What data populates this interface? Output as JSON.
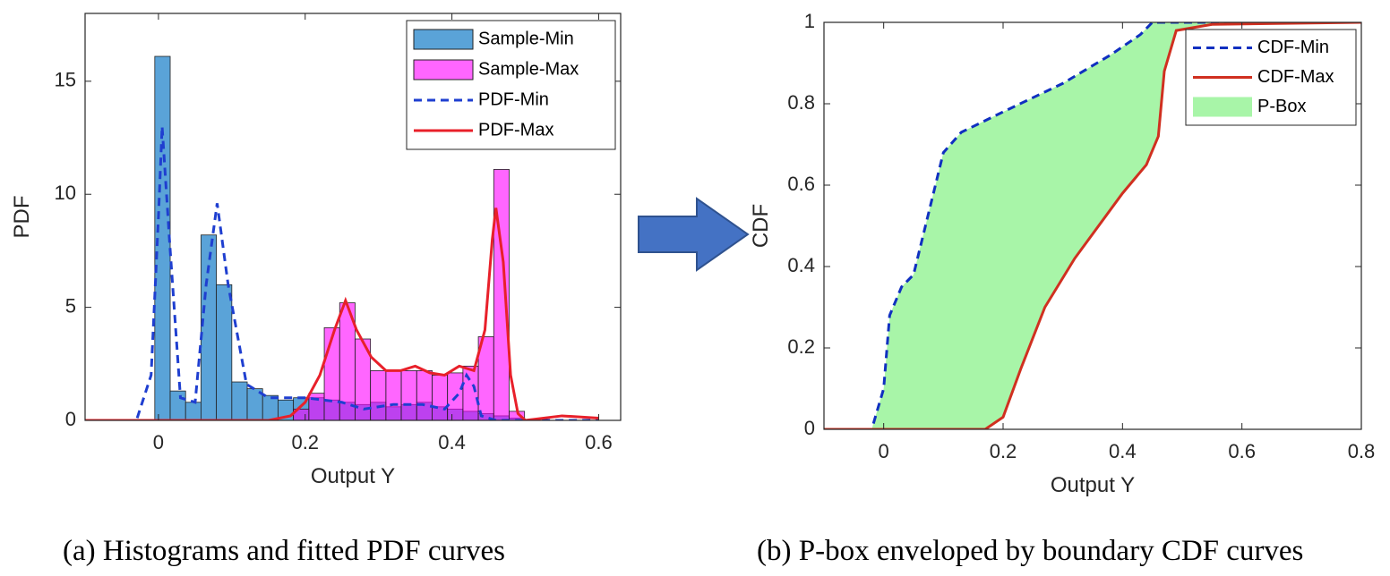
{
  "chart_data": [
    {
      "type": "histogram",
      "caption": "(a) Histograms and fitted PDF curves",
      "xlabel": "Output Y",
      "ylabel": "PDF",
      "xlim": [
        -0.1,
        0.63
      ],
      "ylim": [
        0,
        18
      ],
      "xticks": [
        0,
        0.2,
        0.4,
        0.6
      ],
      "yticks": [
        0,
        5,
        10,
        15
      ],
      "legend": "upper right",
      "bins": [
        -0.005,
        0.016,
        0.037,
        0.058,
        0.079,
        0.1,
        0.121,
        0.142,
        0.163,
        0.184,
        0.205,
        0.226,
        0.247,
        0.268,
        0.289,
        0.31,
        0.331,
        0.352,
        0.373,
        0.394,
        0.415,
        0.436,
        0.457,
        0.478,
        0.499
      ],
      "series": [
        {
          "name": "Sample-Min",
          "color": "#5aa3d8",
          "alpha": 1,
          "values": [
            16.1,
            1.3,
            0.8,
            8.2,
            6.0,
            1.7,
            1.4,
            1.1,
            0.9,
            1.0,
            1.0,
            0.9,
            0.8,
            0.7,
            0.8,
            0.6,
            0.7,
            0.8,
            0.6,
            0.5,
            0.4,
            0.3,
            0.2,
            0.1
          ]
        },
        {
          "name": "Sample-Max",
          "color": "#ff00ff",
          "alpha": 0.6,
          "values": [
            0,
            0,
            0,
            0,
            0,
            0,
            0,
            0,
            0,
            0.5,
            1.2,
            4.1,
            5.2,
            3.6,
            2.2,
            2.2,
            2.2,
            2.2,
            2.0,
            2.1,
            2.4,
            3.7,
            11.1,
            0.4
          ]
        }
      ],
      "lines": [
        {
          "name": "PDF-Min",
          "color": "#1f3fd0",
          "line_style": "dashed",
          "x": [
            -0.1,
            -0.03,
            -0.01,
            0,
            0.005,
            0.015,
            0.03,
            0.05,
            0.065,
            0.08,
            0.095,
            0.12,
            0.15,
            0.2,
            0.25,
            0.28,
            0.32,
            0.36,
            0.39,
            0.41,
            0.42,
            0.43,
            0.44,
            0.46,
            0.6
          ],
          "values": [
            0,
            0,
            2,
            9,
            13,
            8,
            1,
            0.8,
            6,
            9.6,
            6,
            1.6,
            1.0,
            1.0,
            0.8,
            0.5,
            0.7,
            0.7,
            0.5,
            1.2,
            2.0,
            1.5,
            0.2,
            0,
            0
          ]
        },
        {
          "name": "PDF-Max",
          "color": "#e8202a",
          "line_style": "solid",
          "x": [
            -0.1,
            0.15,
            0.18,
            0.2,
            0.22,
            0.24,
            0.255,
            0.27,
            0.29,
            0.31,
            0.33,
            0.35,
            0.37,
            0.39,
            0.41,
            0.43,
            0.445,
            0.455,
            0.46,
            0.47,
            0.48,
            0.49,
            0.5,
            0.55,
            0.6
          ],
          "values": [
            0,
            0,
            0.2,
            0.8,
            2,
            4,
            5.3,
            4,
            2.8,
            2.2,
            2.2,
            2.4,
            2.1,
            2.0,
            2.4,
            2.2,
            4,
            8,
            9.4,
            7,
            2,
            0.3,
            0,
            0.2,
            0.1
          ]
        }
      ]
    },
    {
      "type": "line",
      "caption": "(b) P-box enveloped by boundary CDF curves",
      "xlabel": "Output Y",
      "ylabel": "CDF",
      "xlim": [
        -0.1,
        0.8
      ],
      "ylim": [
        0,
        1
      ],
      "xticks": [
        0,
        0.2,
        0.4,
        0.6,
        0.8
      ],
      "yticks": [
        0,
        0.2,
        0.4,
        0.6,
        0.8,
        1
      ],
      "legend": "upper right",
      "series": [
        {
          "name": "CDF-Min",
          "color": "#1030c0",
          "line_style": "dashed",
          "x": [
            -0.1,
            -0.02,
            0,
            0.01,
            0.03,
            0.05,
            0.07,
            0.1,
            0.13,
            0.2,
            0.3,
            0.38,
            0.43,
            0.45,
            0.8
          ],
          "values": [
            0,
            0,
            0.1,
            0.28,
            0.35,
            0.38,
            0.5,
            0.68,
            0.73,
            0.78,
            0.85,
            0.92,
            0.97,
            1,
            1
          ]
        },
        {
          "name": "CDF-Max",
          "color": "#d03020",
          "line_style": "solid",
          "x": [
            -0.1,
            0.17,
            0.2,
            0.23,
            0.27,
            0.32,
            0.4,
            0.44,
            0.46,
            0.47,
            0.49,
            0.55,
            0.8
          ],
          "values": [
            0,
            0,
            0.03,
            0.15,
            0.3,
            0.42,
            0.58,
            0.65,
            0.72,
            0.88,
            0.98,
            0.995,
            1
          ]
        }
      ],
      "fill": {
        "name": "P-Box",
        "color": "#a8f5a8"
      }
    }
  ]
}
